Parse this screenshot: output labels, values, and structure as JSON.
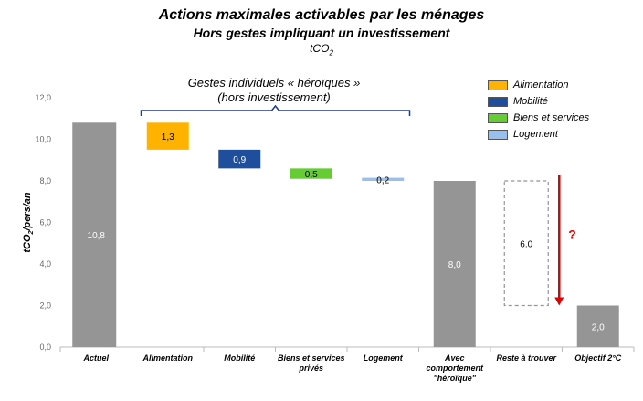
{
  "header": {
    "title": "Actions maximales activables par les ménages",
    "subtitle": "Hors gestes impliquant un investissement",
    "unit_main": "tCO",
    "unit_sub": "2"
  },
  "bracket": {
    "line1": "Gestes individuels « héroïques »",
    "line2": "(hors investissement)"
  },
  "legend": [
    {
      "label": "Alimentation",
      "color": "#FFB300"
    },
    {
      "label": "Mobilité",
      "color": "#1F4E9C"
    },
    {
      "label": "Biens et services",
      "color": "#66CC33"
    },
    {
      "label": "Logement",
      "color": "#99BFEF"
    }
  ],
  "chart_data": {
    "type": "bar",
    "subtype": "waterfall",
    "ylabel_main": "tCO",
    "ylabel_sub": "2",
    "ylabel_rest": "/pers/an",
    "ylim": [
      0,
      12
    ],
    "yticks": [
      "0,0",
      "2,0",
      "4,0",
      "6,0",
      "8,0",
      "10,0",
      "12,0"
    ],
    "categories": [
      [
        "Actuel"
      ],
      [
        "Alimentation"
      ],
      [
        "Mobilité"
      ],
      [
        "Biens et services",
        "privés"
      ],
      [
        "Logement"
      ],
      [
        "Avec",
        "comportement",
        "\"héroïque\""
      ],
      [
        "Reste à trouver"
      ],
      [
        "Objectif 2°C"
      ]
    ],
    "bars": [
      {
        "bottom": 0,
        "top": 10.8,
        "label": "10,8",
        "color": "#959595",
        "style": "solid"
      },
      {
        "bottom": 9.5,
        "top": 10.8,
        "label": "1,3",
        "color": "#FFB300",
        "style": "solid"
      },
      {
        "bottom": 8.6,
        "top": 9.5,
        "label": "0,9",
        "color": "#1F4E9C",
        "style": "solid"
      },
      {
        "bottom": 8.1,
        "top": 8.6,
        "label": "0,5",
        "color": "#66CC33",
        "style": "solid"
      },
      {
        "bottom": 8.0,
        "top": 8.15,
        "label": "0,2",
        "color": "#99BFEF",
        "style": "solid"
      },
      {
        "bottom": 0,
        "top": 8.0,
        "label": "8,0",
        "color": "#959595",
        "style": "solid"
      },
      {
        "bottom": 2.0,
        "top": 8.0,
        "label": "6.0",
        "color": "#959595",
        "style": "dashed"
      },
      {
        "bottom": 0,
        "top": 2.0,
        "label": "2,0",
        "color": "#959595",
        "style": "solid"
      }
    ],
    "arrow": {
      "from": 8.0,
      "to": 2.0,
      "color": "#E00000",
      "label": "?"
    }
  }
}
